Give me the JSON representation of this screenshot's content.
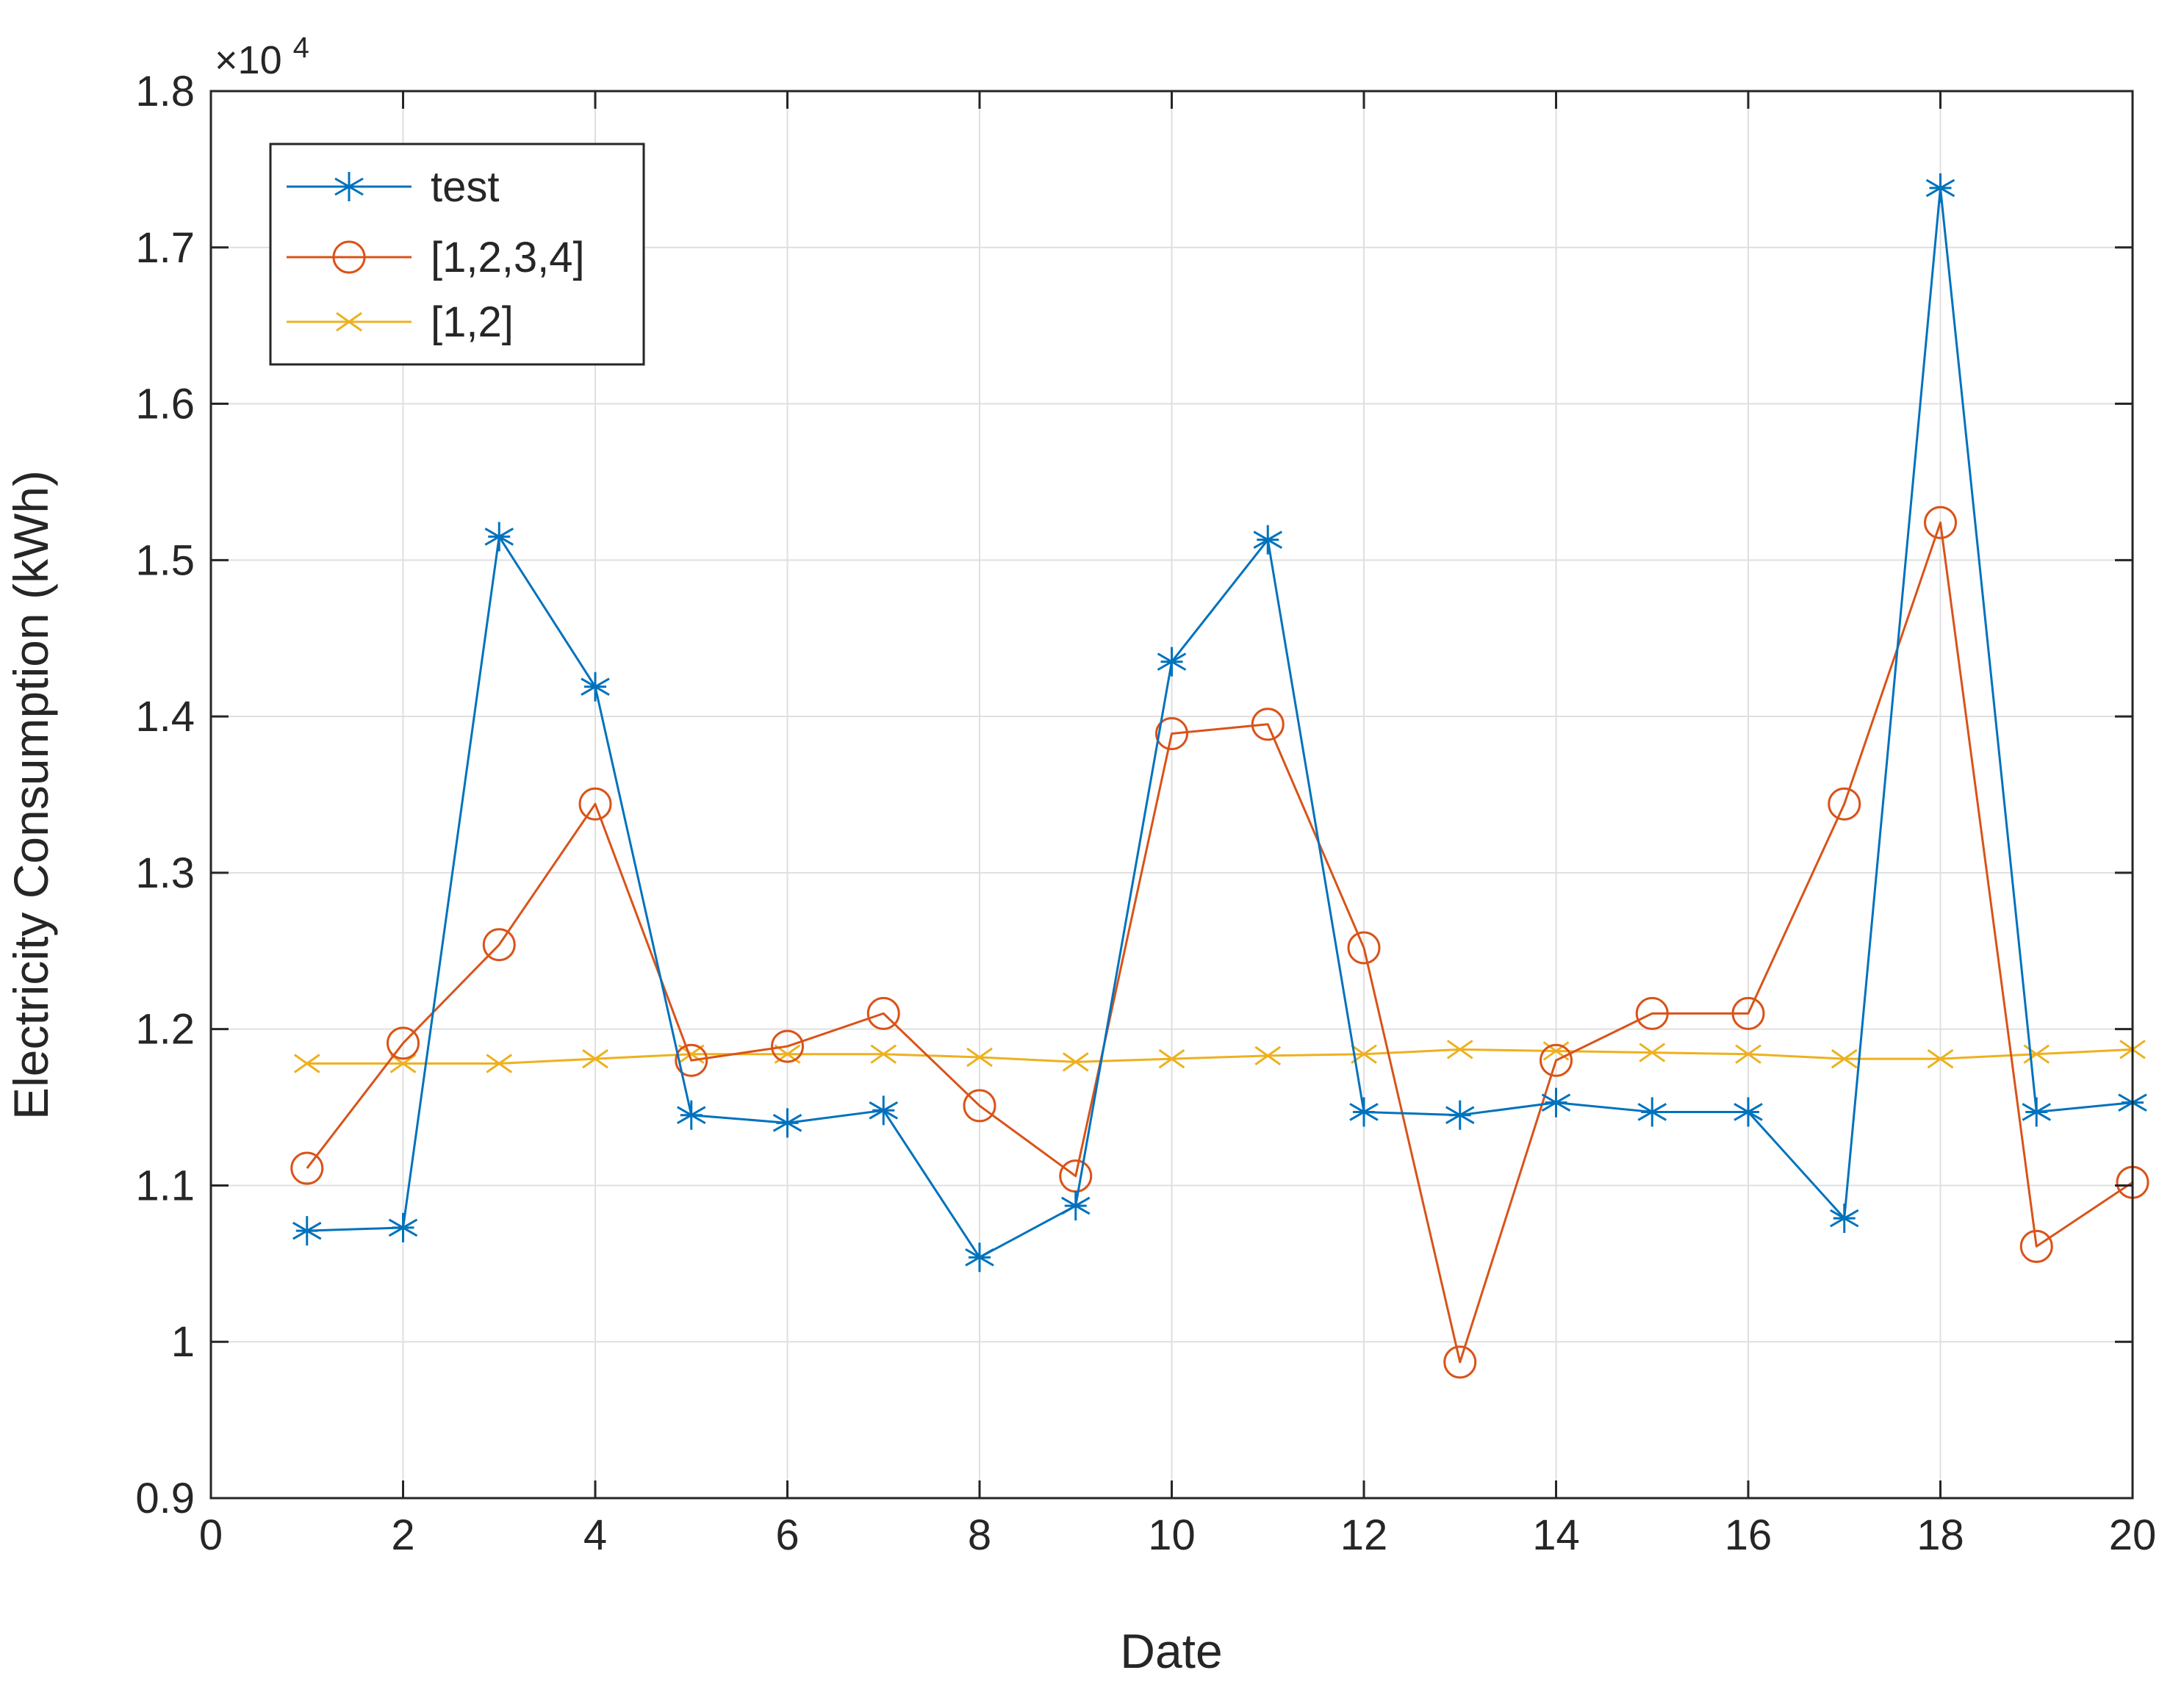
{
  "chart_data": {
    "type": "line",
    "title": "",
    "xlabel": "Date",
    "ylabel": "Electricity Consumption (kWh)",
    "exponent_label": "×10",
    "exponent_power": "4",
    "xlim": [
      0,
      20
    ],
    "ylim": [
      0.9,
      1.8
    ],
    "y_multiplier": 10000,
    "grid": true,
    "legend_position": "top-left",
    "x_ticks": [
      0,
      2,
      4,
      6,
      8,
      10,
      12,
      14,
      16,
      18,
      20
    ],
    "x_tick_labels": [
      "0",
      "2",
      "4",
      "6",
      "8",
      "10",
      "12",
      "14",
      "16",
      "18",
      "20"
    ],
    "y_ticks": [
      0.9,
      1.0,
      1.1,
      1.2,
      1.3,
      1.4,
      1.5,
      1.6,
      1.7,
      1.8
    ],
    "y_tick_labels": [
      "0.9",
      "1",
      "1.1",
      "1.2",
      "1.3",
      "1.4",
      "1.5",
      "1.6",
      "1.7",
      "1.8"
    ],
    "x": [
      1,
      2,
      3,
      4,
      5,
      6,
      7,
      8,
      9,
      10,
      11,
      12,
      13,
      14,
      15,
      16,
      17,
      18,
      19,
      20
    ],
    "series": [
      {
        "name": "test",
        "color": "#0072BD",
        "marker": "asterisk",
        "values": [
          1.071,
          1.073,
          1.515,
          1.419,
          1.145,
          1.14,
          1.148,
          1.054,
          1.087,
          1.435,
          1.513,
          1.147,
          1.145,
          1.153,
          1.147,
          1.147,
          1.079,
          1.738,
          1.147,
          1.153
        ]
      },
      {
        "name": "[1,2,3,4]",
        "color": "#D95319",
        "marker": "circle",
        "values": [
          1.111,
          1.191,
          1.254,
          1.344,
          1.18,
          1.189,
          1.21,
          1.151,
          1.106,
          1.389,
          1.395,
          1.252,
          0.987,
          1.18,
          1.21,
          1.21,
          1.344,
          1.524,
          1.061,
          1.102
        ]
      },
      {
        "name": "[1,2]",
        "color": "#EDB120",
        "marker": "x",
        "values": [
          1.178,
          1.178,
          1.178,
          1.181,
          1.184,
          1.184,
          1.184,
          1.182,
          1.179,
          1.181,
          1.183,
          1.184,
          1.187,
          1.186,
          1.185,
          1.184,
          1.181,
          1.181,
          1.184,
          1.187
        ]
      }
    ]
  }
}
